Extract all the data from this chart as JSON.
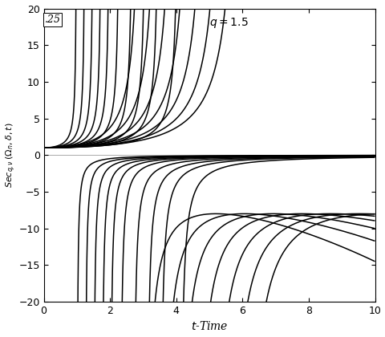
{
  "xlabel": "$t$-Time",
  "ylabel": "$Sec_{q,\\nu}\\,(\\Omega_n, \\delta, t)$",
  "xlim": [
    0,
    10
  ],
  "ylim": [
    -20,
    20
  ],
  "xticks": [
    0,
    2,
    4,
    6,
    8,
    10
  ],
  "yticks": [
    -20,
    -15,
    -10,
    -5,
    0,
    5,
    10,
    15,
    20
  ],
  "line_color": "#000000",
  "linewidth": 1.1,
  "clip_val": 20,
  "q025_label": ".25",
  "q15_label": "q = 1.5",
  "q025_curves": {
    "q": 0.25,
    "n_values": [
      1,
      2,
      3,
      4,
      5,
      6,
      7,
      8,
      9,
      10
    ]
  },
  "q15_curves": {
    "q": 1.5,
    "n_values": [
      1,
      2,
      3,
      4,
      5,
      6,
      7
    ]
  }
}
